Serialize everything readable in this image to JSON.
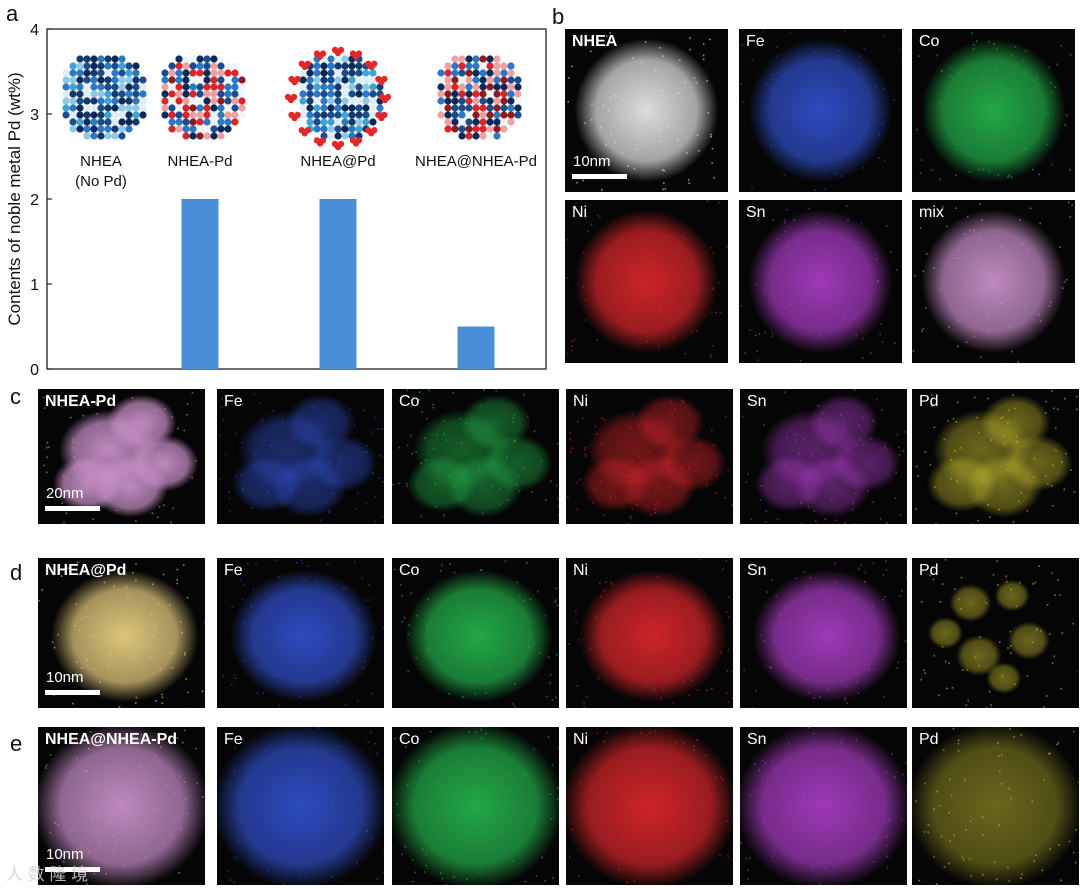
{
  "panels": {
    "a": "a",
    "b": "b",
    "c": "c",
    "d": "d",
    "e": "e"
  },
  "chart_data": {
    "type": "bar",
    "categories": [
      "NHEA\n(No Pd)",
      "NHEA-Pd",
      "NHEA@Pd",
      "NHEA@NHEA-Pd"
    ],
    "values": [
      0,
      2,
      2,
      0.5
    ],
    "title": "",
    "xlabel": "",
    "ylabel": "Contents of noble metal Pd (wt%)",
    "ylim": [
      0,
      4
    ],
    "yticks": [
      0,
      1,
      2,
      3,
      4
    ],
    "bar_color": "#4a90d9",
    "grid": false,
    "legend": "none"
  },
  "maps": {
    "b": [
      {
        "label": "NHEA",
        "kind": "haadf",
        "scale": "10nm"
      },
      {
        "label": "Fe",
        "kind": "fe"
      },
      {
        "label": "Co",
        "kind": "co"
      },
      {
        "label": "Ni",
        "kind": "ni"
      },
      {
        "label": "Sn",
        "kind": "sn"
      },
      {
        "label": "mix",
        "kind": "mix"
      }
    ],
    "c": [
      {
        "label": "NHEA-Pd",
        "kind": "mix",
        "scale": "20nm"
      },
      {
        "label": "Fe",
        "kind": "fe"
      },
      {
        "label": "Co",
        "kind": "co"
      },
      {
        "label": "Ni",
        "kind": "ni"
      },
      {
        "label": "Sn",
        "kind": "sn"
      },
      {
        "label": "Pd",
        "kind": "pd"
      }
    ],
    "d": [
      {
        "label": "NHEA@Pd",
        "kind": "mixy",
        "scale": "10nm"
      },
      {
        "label": "Fe",
        "kind": "fe"
      },
      {
        "label": "Co",
        "kind": "co"
      },
      {
        "label": "Ni",
        "kind": "ni"
      },
      {
        "label": "Sn",
        "kind": "sn"
      },
      {
        "label": "Pd",
        "kind": "pd"
      }
    ],
    "e": [
      {
        "label": "NHEA@NHEA-Pd",
        "kind": "mix",
        "scale": "10nm"
      },
      {
        "label": "Fe",
        "kind": "fe"
      },
      {
        "label": "Co",
        "kind": "co"
      },
      {
        "label": "Ni",
        "kind": "ni"
      },
      {
        "label": "Sn",
        "kind": "sn"
      },
      {
        "label": "Pd",
        "kind": "pd"
      }
    ]
  },
  "colors": {
    "fe": "#2f4fc8",
    "co": "#23b04a",
    "ni": "#d8262a",
    "sn": "#a63cc0",
    "pd": "#c8c030",
    "haadf": "#e8e8e8",
    "mix": "#c890c8",
    "mixy": "#e8d080"
  },
  "watermark": "人 数 隆 境"
}
